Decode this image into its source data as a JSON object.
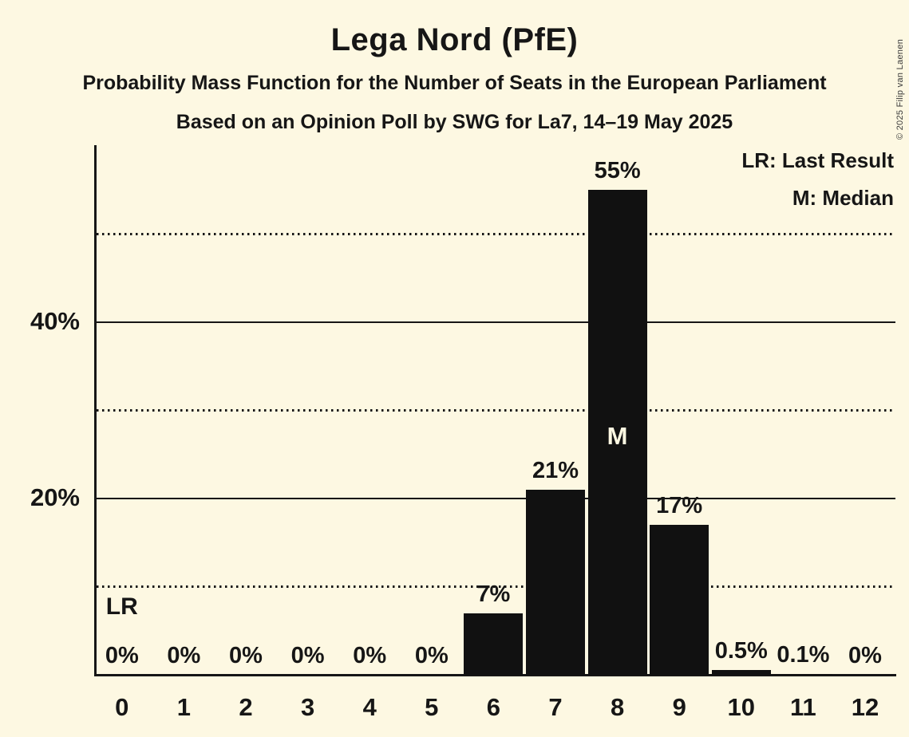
{
  "title": "Lega Nord (PfE)",
  "subtitle1": "Probability Mass Function for the Number of Seats in the European Parliament",
  "subtitle2": "Based on an Opinion Poll by SWG for La7, 14–19 May 2025",
  "copyright": "© 2025 Filip van Laenen",
  "legend": {
    "lr": "LR: Last Result",
    "m": "M: Median"
  },
  "colors": {
    "background": "#FDF8E2",
    "bar": "#111111",
    "text": "#161616",
    "median_label": "#FDF8E2"
  },
  "chart_data": {
    "type": "bar",
    "title": "Lega Nord (PfE)",
    "xlabel": "",
    "ylabel": "",
    "categories": [
      "0",
      "1",
      "2",
      "3",
      "4",
      "5",
      "6",
      "7",
      "8",
      "9",
      "10",
      "11",
      "12"
    ],
    "values": [
      0,
      0,
      0,
      0,
      0,
      0,
      7,
      21,
      55,
      17,
      0.5,
      0.1,
      0
    ],
    "labels": [
      "0%",
      "0%",
      "0%",
      "0%",
      "0%",
      "0%",
      "7%",
      "21%",
      "55%",
      "17%",
      "0.5%",
      "0.1%",
      "0%"
    ],
    "ylim": [
      0,
      60
    ],
    "y_ticks": [
      {
        "value": 20,
        "label": "20%"
      },
      {
        "value": 40,
        "label": "40%"
      }
    ],
    "solid_gridlines": [
      20,
      40
    ],
    "dotted_gridlines": [
      10,
      30,
      50
    ],
    "grid": "horizontal",
    "legend_position": "top-right",
    "annotations": {
      "lr_label": "LR",
      "lr_seat_index": 0,
      "m_label": "M",
      "median_seat_index": 8
    }
  }
}
